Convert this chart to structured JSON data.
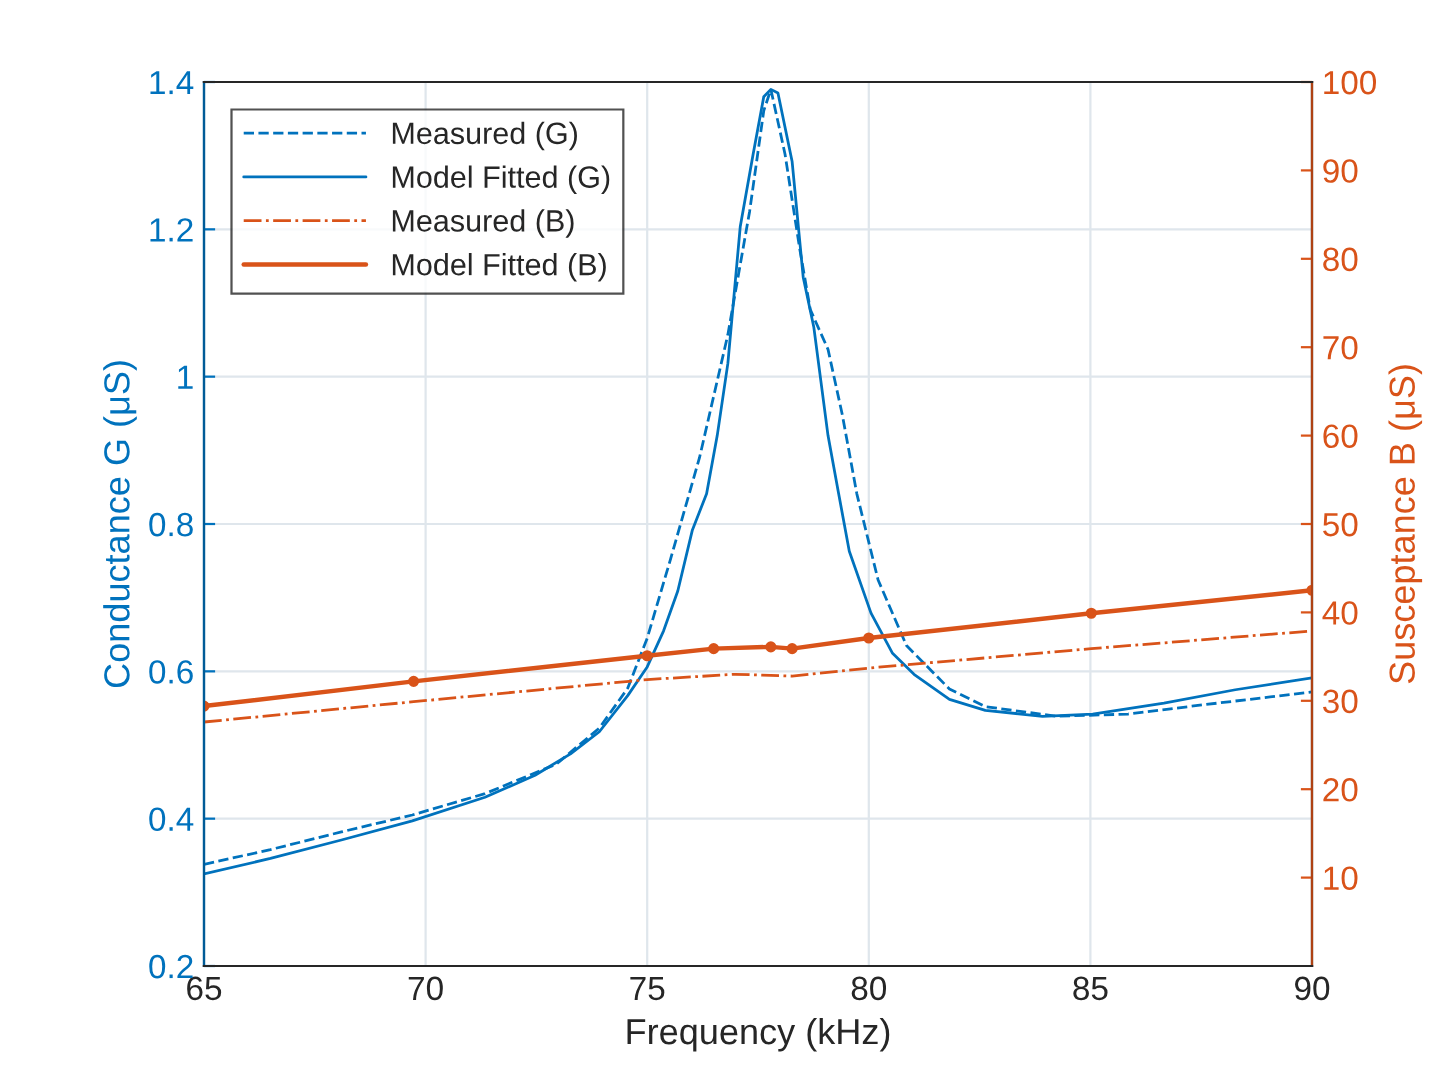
{
  "chart_data": {
    "type": "line",
    "xlabel": "Frequency (kHz)",
    "ylabel": "Conductance G (μS)",
    "y2label": "Susceptance B (μS)",
    "xlim": [
      65,
      90
    ],
    "xticks": [
      65,
      70,
      75,
      80,
      85,
      90
    ],
    "ylim": [
      0.2,
      1.4
    ],
    "yticks": [
      0.2,
      0.4,
      0.6,
      0.8,
      1,
      1.2,
      1.4
    ],
    "y2lim": [
      0,
      100
    ],
    "y2ticks": [
      10,
      20,
      30,
      40,
      50,
      60,
      70,
      80,
      90,
      100
    ],
    "grid": true,
    "legend": "top left",
    "series": [
      {
        "name": "Measured (G)",
        "color": "#0072bd",
        "line_style": "dashed",
        "marker": "none",
        "x": [
          65,
          66.5,
          68.1,
          69.7,
          71.34,
          72.95,
          73.92,
          74.56,
          75,
          75.53,
          76.18,
          76.82,
          77.31,
          77.63,
          77.79,
          78.11,
          78.44,
          78.68,
          79.08,
          79.4,
          79.73,
          80.21,
          80.85,
          81.82,
          82.63,
          84.24,
          85.85,
          87.47,
          90
        ],
        "values": [
          0.338,
          0.358,
          0.382,
          0.405,
          0.434,
          0.474,
          0.523,
          0.577,
          0.645,
          0.753,
          0.89,
          1.057,
          1.224,
          1.361,
          1.39,
          1.302,
          1.174,
          1.091,
          1.037,
          0.949,
          0.841,
          0.724,
          0.635,
          0.576,
          0.552,
          0.539,
          0.542,
          0.554,
          0.572
        ]
      },
      {
        "name": "Model Fitted (G)",
        "color": "#0072bd",
        "line_style": "solid",
        "marker": "none",
        "x": [
          65,
          66.5,
          68.1,
          69.7,
          71.34,
          72.47,
          73.27,
          73.92,
          74.56,
          75,
          75.37,
          75.69,
          76.02,
          76.34,
          76.58,
          76.82,
          77.1,
          77.39,
          77.63,
          77.79,
          77.95,
          78.27,
          78.52,
          78.76,
          79.08,
          79.32,
          79.56,
          80.05,
          80.53,
          81.02,
          81.82,
          82.63,
          83.92,
          85.05,
          86.66,
          88.27,
          90
        ],
        "values": [
          0.325,
          0.346,
          0.371,
          0.397,
          0.429,
          0.459,
          0.488,
          0.518,
          0.567,
          0.606,
          0.655,
          0.709,
          0.792,
          0.841,
          0.92,
          1.018,
          1.204,
          1.302,
          1.38,
          1.39,
          1.385,
          1.292,
          1.135,
          1.067,
          0.92,
          0.841,
          0.763,
          0.679,
          0.625,
          0.596,
          0.562,
          0.547,
          0.539,
          0.542,
          0.557,
          0.575,
          0.591
        ]
      },
      {
        "name": "Measured (B)",
        "color": "#d95319",
        "line_style": "dotted",
        "marker": "none",
        "axis": "y2",
        "x": [
          65,
          69.73,
          75,
          76.98,
          78.27,
          80,
          85.02,
          90
        ],
        "values": [
          27.6,
          29.9,
          32.4,
          33.0,
          32.8,
          33.7,
          35.9,
          37.9
        ]
      },
      {
        "name": "Model Fitted (B)",
        "color": "#d95319",
        "line_style": "solid",
        "marker": "circle",
        "axis": "y2",
        "x": [
          65,
          69.73,
          75,
          76.5,
          77.79,
          78.27,
          80,
          85.02,
          90
        ],
        "values": [
          29.4,
          32.2,
          35.1,
          35.9,
          36.1,
          35.9,
          37.1,
          39.9,
          42.5
        ]
      }
    ]
  }
}
